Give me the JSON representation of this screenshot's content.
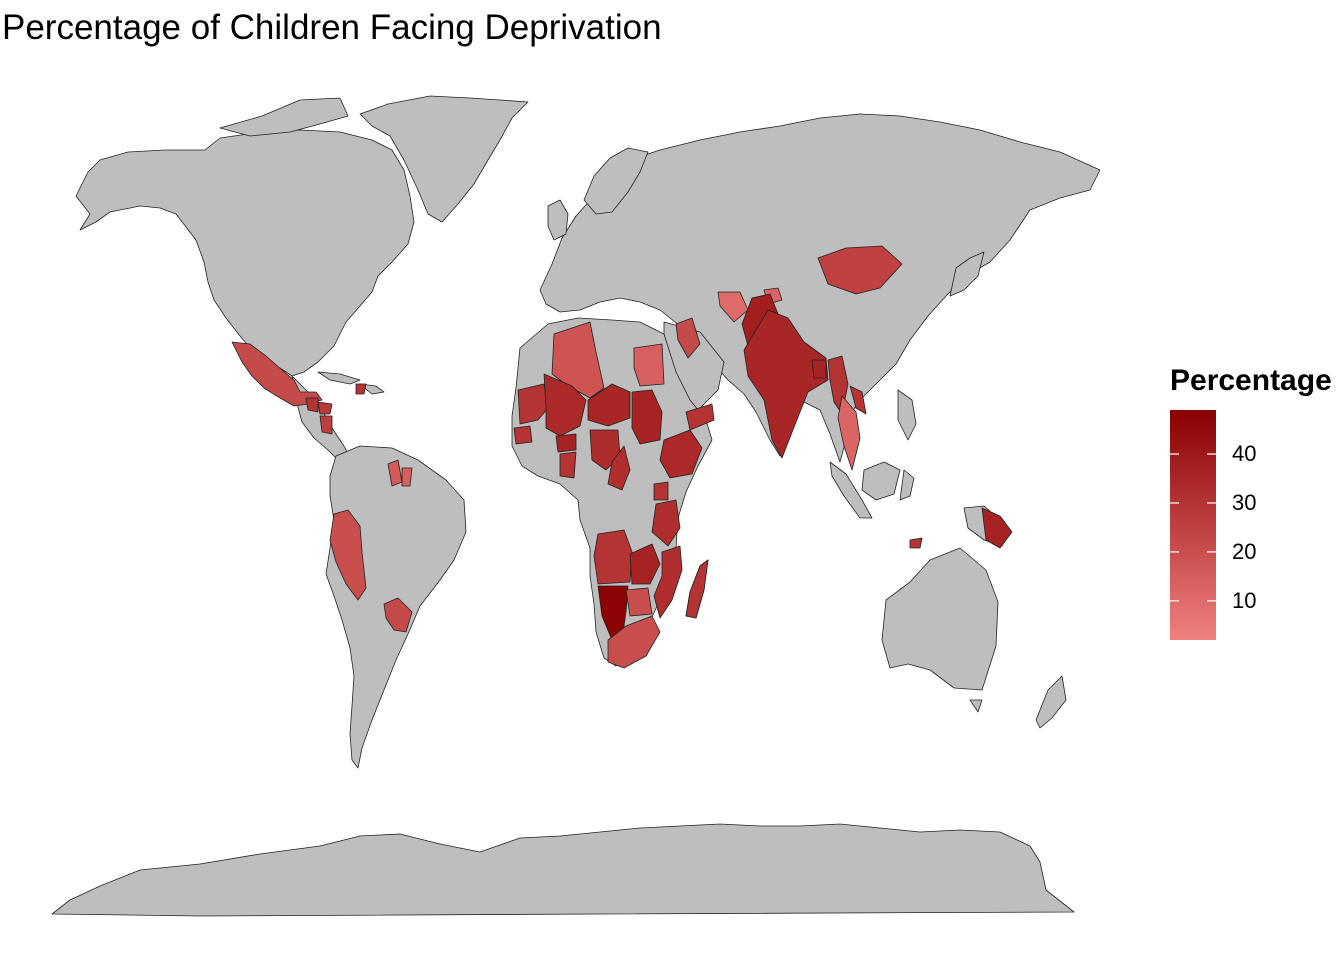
{
  "title": "Percentage of Children Facing Deprivation",
  "colors": {
    "land": "#bebebe",
    "border": "#222222",
    "low": "#f08080",
    "high": "#8b0000",
    "background": "#ffffff"
  },
  "legend": {
    "title": "Percentage",
    "min": 2,
    "max": 49,
    "ticks": [
      {
        "value": 10,
        "label": "10"
      },
      {
        "value": 20,
        "label": "20"
      },
      {
        "value": 30,
        "label": "30"
      },
      {
        "value": 40,
        "label": "40"
      }
    ]
  },
  "map_data": {
    "type": "choropleth",
    "variable": "Percentage",
    "regions": [
      {
        "name": "Mexico",
        "value": 22
      },
      {
        "name": "Guatemala",
        "value": 30
      },
      {
        "name": "Honduras",
        "value": 28
      },
      {
        "name": "Nicaragua",
        "value": 26
      },
      {
        "name": "Haiti",
        "value": 30
      },
      {
        "name": "Guyana",
        "value": 16
      },
      {
        "name": "Suriname",
        "value": 14
      },
      {
        "name": "Peru",
        "value": 20
      },
      {
        "name": "Paraguay",
        "value": 22
      },
      {
        "name": "Algeria",
        "value": 18
      },
      {
        "name": "Egypt",
        "value": 14
      },
      {
        "name": "Mauritania",
        "value": 30
      },
      {
        "name": "Mali",
        "value": 34
      },
      {
        "name": "Niger",
        "value": 35
      },
      {
        "name": "Chad",
        "value": 36
      },
      {
        "name": "Nigeria",
        "value": 33
      },
      {
        "name": "Senegal",
        "value": 30
      },
      {
        "name": "Burkina Faso",
        "value": 36
      },
      {
        "name": "Ghana",
        "value": 30
      },
      {
        "name": "Cameroon",
        "value": 32
      },
      {
        "name": "Ethiopia",
        "value": 34
      },
      {
        "name": "Yemen",
        "value": 30
      },
      {
        "name": "Iraq",
        "value": 22
      },
      {
        "name": "Uganda",
        "value": 30
      },
      {
        "name": "Tanzania",
        "value": 32
      },
      {
        "name": "Angola",
        "value": 30
      },
      {
        "name": "Zambia",
        "value": 36
      },
      {
        "name": "Mozambique",
        "value": 32
      },
      {
        "name": "Madagascar",
        "value": 30
      },
      {
        "name": "Namibia",
        "value": 48
      },
      {
        "name": "Botswana",
        "value": 20
      },
      {
        "name": "South Africa",
        "value": 20
      },
      {
        "name": "Turkmenistan",
        "value": 10
      },
      {
        "name": "Tajikistan",
        "value": 12
      },
      {
        "name": "Mongolia",
        "value": 25
      },
      {
        "name": "Pakistan",
        "value": 38
      },
      {
        "name": "India",
        "value": 35
      },
      {
        "name": "Bangladesh",
        "value": 36
      },
      {
        "name": "Myanmar",
        "value": 30
      },
      {
        "name": "Laos",
        "value": 30
      },
      {
        "name": "Thailand",
        "value": 12
      },
      {
        "name": "Papua New Guinea",
        "value": 36
      },
      {
        "name": "Timor-Leste",
        "value": 30
      }
    ]
  }
}
